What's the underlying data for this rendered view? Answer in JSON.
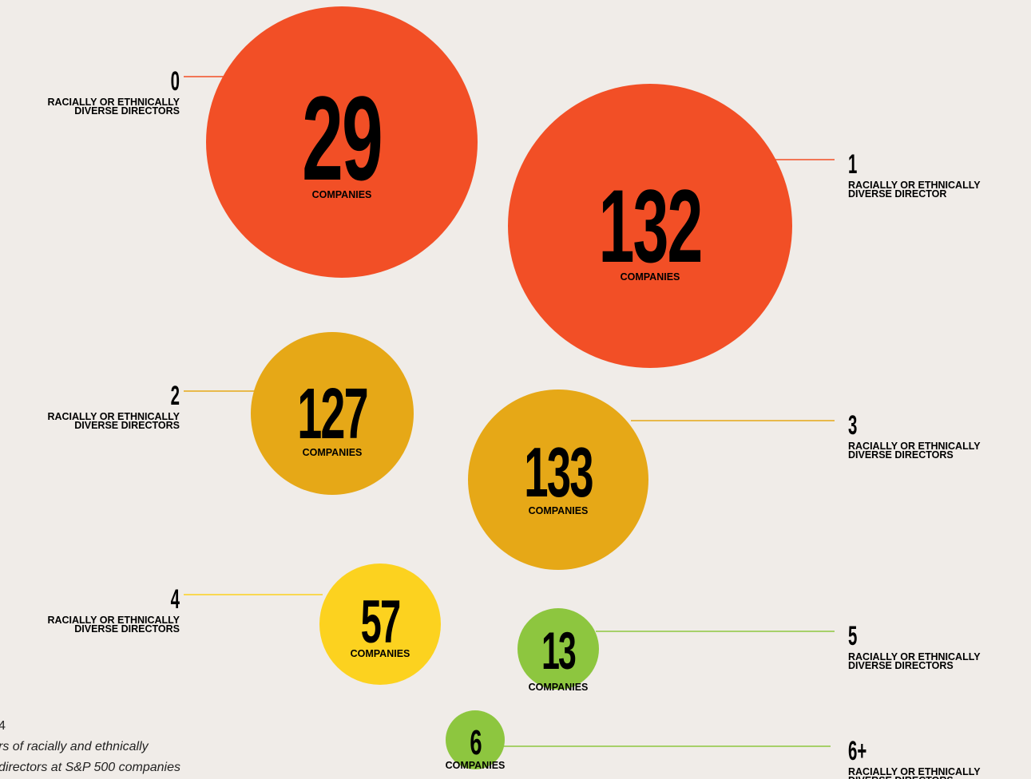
{
  "groups": [
    {
      "count": "0",
      "label_lines": [
        "RACIALLY OR ETHNICALLY",
        "DIVERSE DIRECTORS"
      ],
      "value": 29,
      "unit": "COMPANIES"
    },
    {
      "count": "1",
      "label_lines": [
        "RACIALLY OR ETHNICALLY",
        "DIVERSE DIRECTOR"
      ],
      "value": 132,
      "unit": "COMPANIES"
    },
    {
      "count": "2",
      "label_lines": [
        "RACIALLY OR ETHNICALLY",
        "DIVERSE DIRECTORS"
      ],
      "value": 127,
      "unit": "COMPANIES"
    },
    {
      "count": "3",
      "label_lines": [
        "RACIALLY OR ETHNICALLY",
        "DIVERSE DIRECTORS"
      ],
      "value": 133,
      "unit": "COMPANIES"
    },
    {
      "count": "4",
      "label_lines": [
        "RACIALLY OR ETHNICALLY",
        "DIVERSE DIRECTORS"
      ],
      "value": 57,
      "unit": "COMPANIES"
    },
    {
      "count": "5",
      "label_lines": [
        "RACIALLY OR ETHNICALLY",
        "DIVERSE DIRECTORS"
      ],
      "value": 13,
      "unit": "COMPANIES"
    },
    {
      "count": "6+",
      "label_lines": [
        "RACIALLY OR ETHNICALLY",
        "DIVERSE DIRECTORS"
      ],
      "value": 6,
      "unit": "COMPANIES"
    }
  ],
  "footnote": {
    "number": "4",
    "lines": [
      "rs of racially and ethnically",
      " directors at S&P 500 companies"
    ]
  }
}
